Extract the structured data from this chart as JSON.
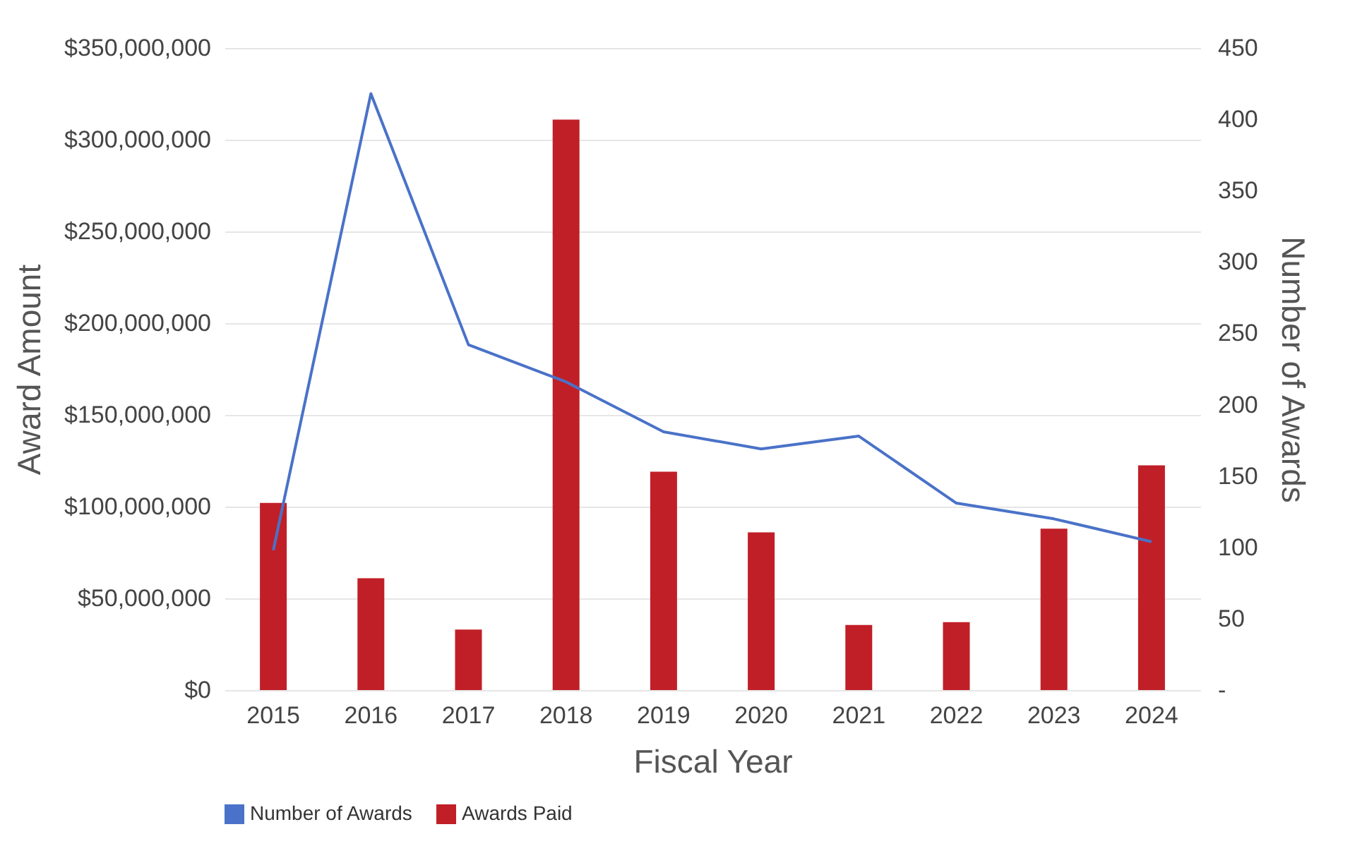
{
  "chart_data": {
    "type": "bar",
    "xlabel": "Fiscal Year",
    "ylabel": "Award Amount",
    "y2label": "Number of Awards",
    "categories": [
      "2015",
      "2016",
      "2017",
      "2018",
      "2019",
      "2020",
      "2021",
      "2022",
      "2023",
      "2024"
    ],
    "series": [
      {
        "name": "Number of Awards",
        "type": "line",
        "axis": "y2",
        "color": "#4a72c8",
        "values": [
          98,
          418,
          242,
          216,
          181,
          169,
          178,
          131,
          120,
          104
        ]
      },
      {
        "name": "Awards Paid",
        "color": "#c11f27",
        "values": [
          102000000,
          61000000,
          33000000,
          311000000,
          119000000,
          86000000,
          35500000,
          37000000,
          88000000,
          122500000
        ]
      }
    ],
    "ylim": [
      0,
      350000000
    ],
    "yticks": [
      {
        "value": 0,
        "label": "$0"
      },
      {
        "value": 50000000,
        "label": "$50,000,000"
      },
      {
        "value": 100000000,
        "label": "$100,000,000"
      },
      {
        "value": 150000000,
        "label": "$150,000,000"
      },
      {
        "value": 200000000,
        "label": "$200,000,000"
      },
      {
        "value": 250000000,
        "label": "$250,000,000"
      },
      {
        "value": 300000000,
        "label": "$300,000,000"
      },
      {
        "value": 350000000,
        "label": "$350,000,000"
      }
    ],
    "y2lim": [
      0,
      450
    ],
    "y2ticks": [
      {
        "value": 0,
        "label": "-"
      },
      50,
      100,
      150,
      200,
      250,
      300,
      350,
      400,
      450
    ],
    "grid": "y",
    "legend": "bottom"
  }
}
